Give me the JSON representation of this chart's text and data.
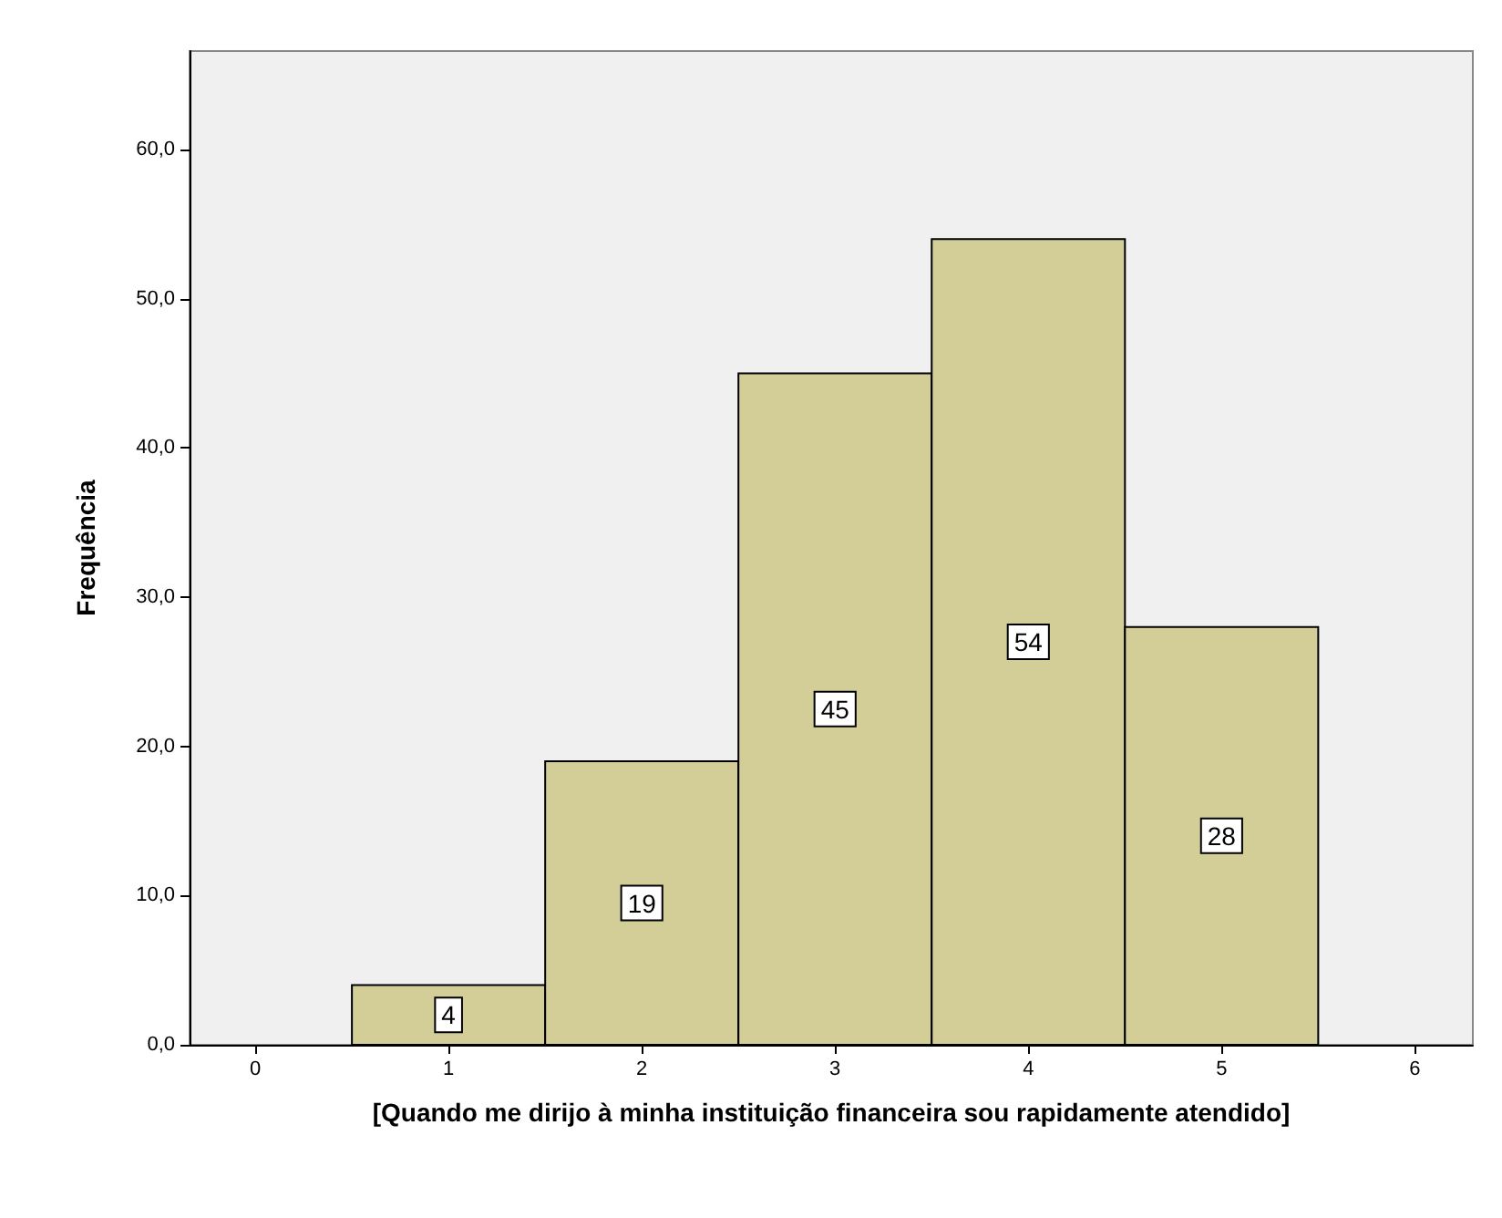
{
  "chart_data": {
    "type": "histogram",
    "xlabel": "[Quando me dirijo à minha instituição financeira sou rapidamente atendido]",
    "ylabel": "Frequência",
    "bins": [
      0.5,
      1.5,
      2.5,
      3.5,
      4.5,
      5.5
    ],
    "values": [
      4,
      19,
      45,
      54,
      28
    ],
    "color": "#d3ce97",
    "xlim": [
      -0.34,
      6.3
    ],
    "xticks": [
      0,
      1,
      2,
      3,
      4,
      5,
      6
    ],
    "ylim": [
      0,
      66.6
    ],
    "yticks": [
      {
        "value": 0,
        "label": "0,0"
      },
      {
        "value": 10,
        "label": "10,0"
      },
      {
        "value": 20,
        "label": "20,0"
      },
      {
        "value": 30,
        "label": "30,0"
      },
      {
        "value": 40,
        "label": "40,0"
      },
      {
        "value": 50,
        "label": "50,0"
      },
      {
        "value": 60,
        "label": "60,0"
      }
    ],
    "data_labels": true
  }
}
